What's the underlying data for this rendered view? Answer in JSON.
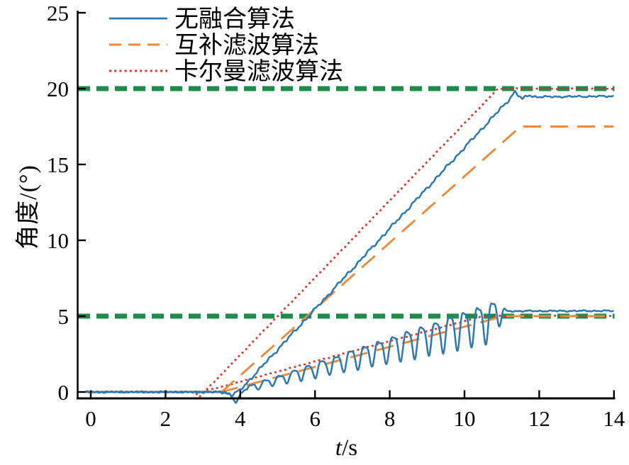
{
  "figure": {
    "background": "#ffffff",
    "axis_color": "#000000"
  },
  "chart_data": {
    "type": "line",
    "title": "",
    "xlabel": "t/s",
    "xlabel_var": "t",
    "xlabel_unit": "/s",
    "ylabel": "角度/(°)",
    "xlim": [
      0,
      14
    ],
    "ylim": [
      0,
      25
    ],
    "xticks": [
      0,
      2,
      4,
      6,
      8,
      10,
      12,
      14
    ],
    "yticks": [
      0,
      5,
      10,
      15,
      20,
      25
    ],
    "grid": false,
    "tick_direction": "in",
    "legend": {
      "position": "top-left",
      "entries": [
        {
          "label": "无融合算法",
          "color": "#2b78b2",
          "style": "solid"
        },
        {
          "label": "互补滤波算法",
          "color": "#e98b3d",
          "style": "dashed"
        },
        {
          "label": "卡尔曼滤波算法",
          "color": "#d23a2e",
          "style": "dotted"
        }
      ]
    },
    "reference_lines": [
      {
        "y": 20,
        "color": "#1f8a4a",
        "style": "bold-dashed"
      },
      {
        "y": 5,
        "color": "#1f8a4a",
        "style": "bold-dashed"
      }
    ],
    "series": [
      {
        "id": "kalman-20",
        "legend": "卡尔曼滤波算法",
        "color": "#d23a2e",
        "style": "dotted",
        "width": 2.7,
        "points": [
          [
            -0.13,
            0
          ],
          [
            2.78,
            0
          ],
          [
            2.9,
            -0.35
          ],
          [
            3.02,
            -0.05
          ],
          [
            10.9,
            20
          ],
          [
            14,
            20
          ]
        ],
        "noise": {
          "amp": 0.03
        }
      },
      {
        "id": "kalman-5",
        "legend": "卡尔曼滤波算法",
        "color": "#d23a2e",
        "style": "dotted",
        "width": 2.7,
        "points": [
          [
            -0.13,
            0
          ],
          [
            2.95,
            0
          ],
          [
            3.35,
            0.25
          ],
          [
            10.5,
            5
          ],
          [
            14,
            5
          ]
        ],
        "noise": {
          "amp": 0.03
        }
      },
      {
        "id": "complementary-20",
        "legend": "互补滤波算法",
        "color": "#e98b3d",
        "style": "dashed",
        "width": 2.9,
        "points": [
          [
            -0.13,
            0
          ],
          [
            3.5,
            0
          ],
          [
            11.5,
            17.5
          ],
          [
            14,
            17.5
          ]
        ]
      },
      {
        "id": "complementary-5",
        "legend": "互补滤波算法",
        "color": "#e98b3d",
        "style": "dashed",
        "width": 2.9,
        "points": [
          [
            -0.13,
            0
          ],
          [
            3.5,
            0
          ],
          [
            11.05,
            5
          ],
          [
            14,
            5
          ]
        ]
      },
      {
        "id": "nofusion-20",
        "legend": "无融合算法",
        "color": "#2b78b2",
        "style": "solid",
        "width": 2.5,
        "points": [
          [
            -0.13,
            0
          ],
          [
            3.55,
            0
          ],
          [
            3.78,
            -0.2
          ],
          [
            3.98,
            0.08
          ],
          [
            11.2,
            19.3
          ],
          [
            11.35,
            19.8
          ],
          [
            11.55,
            19.28
          ],
          [
            11.72,
            19.6
          ],
          [
            11.88,
            19.45
          ],
          [
            14,
            19.5
          ]
        ],
        "noise": {
          "amp": 0.11,
          "flat_until": 3.5,
          "flat_scale": 0.4,
          "settle_from": 11.9,
          "settle_scale": 0.55
        }
      },
      {
        "id": "nofusion-5",
        "legend": "无融合算法",
        "color": "#2b78b2",
        "style": "solid",
        "width": 2.5,
        "points": [
          [
            -0.13,
            0
          ],
          [
            3.4,
            0
          ],
          [
            3.7,
            -0.08
          ],
          [
            3.88,
            -0.7
          ],
          [
            4.02,
            -0.1
          ],
          [
            4.2,
            0.25
          ],
          [
            10.7,
            4.8
          ],
          [
            11.0,
            5.33
          ],
          [
            14,
            5.35
          ]
        ],
        "noise": {
          "amp": 0.05
        },
        "oscillation": {
          "t_start": 4.2,
          "t_grow_end": 10.6,
          "t_hold_end": 10.8,
          "t_end": 11.12,
          "period": 0.38,
          "amp_start": 0.15,
          "amp_end": 1.28,
          "harmonic": 0.28
        }
      }
    ]
  }
}
